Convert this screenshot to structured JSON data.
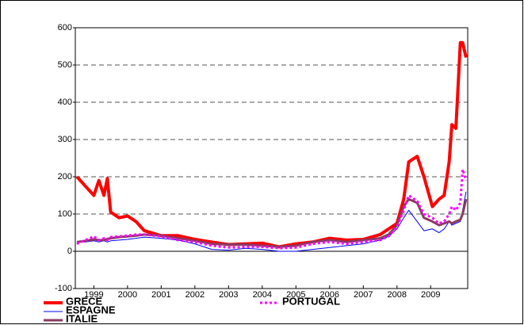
{
  "chart_data": {
    "type": "line",
    "x": [
      1999.0,
      1999.25,
      1999.5,
      1999.65,
      1999.8,
      1999.9,
      2000.0,
      2000.25,
      2000.5,
      2000.75,
      2001.0,
      2001.5,
      2002.0,
      2002.5,
      2003.0,
      2003.5,
      2004.0,
      2004.5,
      2005.0,
      2005.5,
      2006.0,
      2006.5,
      2007.0,
      2007.5,
      2008.0,
      2008.25,
      2008.5,
      2008.7,
      2008.85,
      2009.1,
      2009.3,
      2009.55,
      2009.75,
      2009.9,
      2010.05,
      2010.13,
      2010.25,
      2010.38,
      2010.45,
      2010.55
    ],
    "series": [
      {
        "name": "GRECE",
        "color": "#ff0000",
        "width": 4,
        "dash": "none",
        "values": [
          200,
          175,
          150,
          190,
          150,
          195,
          105,
          90,
          95,
          80,
          55,
          42,
          42,
          32,
          25,
          18,
          20,
          22,
          12,
          20,
          25,
          35,
          30,
          32,
          45,
          60,
          75,
          140,
          240,
          255,
          200,
          120,
          140,
          150,
          240,
          340,
          330,
          560,
          560,
          520
        ]
      },
      {
        "name": "ESPAGNE",
        "color": "#0000ff",
        "width": 1,
        "dash": "none",
        "values": [
          25,
          25,
          28,
          25,
          28,
          25,
          28,
          30,
          32,
          35,
          38,
          35,
          30,
          20,
          5,
          3,
          8,
          5,
          0,
          0,
          5,
          10,
          15,
          20,
          30,
          40,
          60,
          90,
          110,
          80,
          55,
          60,
          50,
          60,
          80,
          70,
          75,
          80,
          110,
          160
        ]
      },
      {
        "name": "ITALIE",
        "color": "#8b3a62",
        "width": 3,
        "dash": "none",
        "values": [
          25,
          28,
          32,
          30,
          30,
          33,
          35,
          38,
          40,
          42,
          45,
          42,
          35,
          28,
          20,
          18,
          18,
          15,
          12,
          15,
          25,
          30,
          25,
          30,
          35,
          45,
          70,
          120,
          140,
          130,
          90,
          80,
          70,
          75,
          80,
          75,
          80,
          85,
          100,
          140
        ]
      },
      {
        "name": "PORTUGAL",
        "color": "#ff00ff",
        "width": 3,
        "dash": "3 3",
        "values": [
          20,
          30,
          40,
          30,
          35,
          30,
          38,
          40,
          42,
          45,
          45,
          40,
          30,
          25,
          15,
          10,
          12,
          12,
          8,
          10,
          20,
          25,
          20,
          25,
          30,
          40,
          65,
          110,
          150,
          135,
          100,
          90,
          75,
          80,
          100,
          120,
          110,
          130,
          220,
          190
        ]
      }
    ],
    "xlim": [
      1998.95,
      2010.6
    ],
    "xticks": [
      {
        "value": 1999.5,
        "label": "1999"
      },
      {
        "value": 2000.5,
        "label": "2000"
      },
      {
        "value": 2001.5,
        "label": "2001"
      },
      {
        "value": 2002.5,
        "label": "2002"
      },
      {
        "value": 2003.5,
        "label": "2003"
      },
      {
        "value": 2004.5,
        "label": "2004"
      },
      {
        "value": 2005.5,
        "label": "2005"
      },
      {
        "value": 2006.5,
        "label": "2006"
      },
      {
        "value": 2007.5,
        "label": "2007"
      },
      {
        "value": 2008.5,
        "label": "2008"
      },
      {
        "value": 2009.5,
        "label": "2009"
      }
    ],
    "ylim": [
      -100,
      600
    ],
    "yticks": [
      -100,
      0,
      100,
      200,
      300,
      400,
      500,
      600
    ],
    "grid": true
  }
}
